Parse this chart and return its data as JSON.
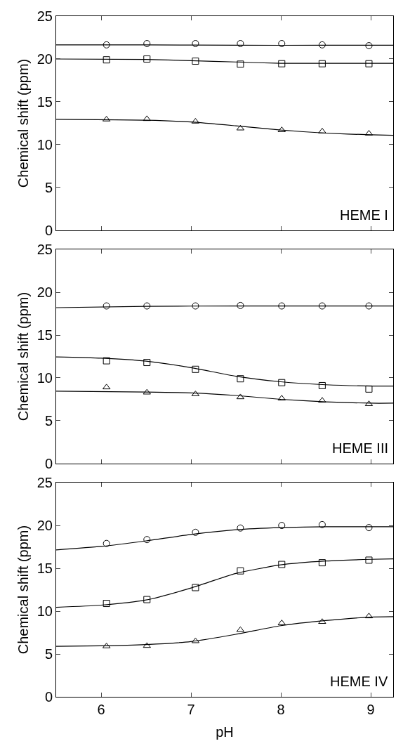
{
  "chart_data": [
    {
      "type": "scatter",
      "ylabel": "Chemical shift (ppm)",
      "xlim": [
        5.5,
        9.25
      ],
      "xticks": [
        6,
        7,
        8,
        9
      ],
      "ylim": [
        0,
        25
      ],
      "yticks": [
        0,
        5,
        10,
        15,
        20,
        25
      ],
      "tick_labels": "y",
      "annotations": [
        "HEME I"
      ],
      "series": [
        {
          "marker": "circle",
          "color": "#000000",
          "x": [
            6.06,
            6.51,
            7.05,
            7.55,
            8.01,
            8.46,
            8.98
          ],
          "values": [
            21.65,
            21.8,
            21.8,
            21.8,
            21.8,
            21.65,
            21.55
          ]
        },
        {
          "marker": "square",
          "color": "#000000",
          "x": [
            6.06,
            6.51,
            7.05,
            7.55,
            8.01,
            8.46,
            8.98
          ],
          "values": [
            19.9,
            20.0,
            19.75,
            19.4,
            19.45,
            19.45,
            19.45
          ]
        },
        {
          "marker": "triangle",
          "color": "#000000",
          "x": [
            6.06,
            6.51,
            7.05,
            7.55,
            8.01,
            8.46,
            8.98
          ],
          "values": [
            12.95,
            13.0,
            12.7,
            11.9,
            11.7,
            11.55,
            11.3
          ]
        },
        {
          "type": "line",
          "marker": "none",
          "color": "#000000",
          "x": [
            5.5,
            6.5,
            7.5,
            8.5,
            9.25
          ],
          "values": [
            21.65,
            21.65,
            21.6,
            21.6,
            21.6
          ]
        },
        {
          "type": "line",
          "marker": "none",
          "color": "#000000",
          "x": [
            5.5,
            6.5,
            7,
            7.5,
            8,
            8.5,
            9.25
          ],
          "values": [
            20.0,
            19.95,
            19.8,
            19.65,
            19.5,
            19.5,
            19.5
          ]
        },
        {
          "type": "line",
          "marker": "none",
          "color": "#000000",
          "x": [
            5.5,
            6.5,
            7,
            7.5,
            8,
            8.5,
            9,
            9.25
          ],
          "values": [
            12.95,
            12.85,
            12.65,
            12.2,
            11.7,
            11.35,
            11.15,
            11.1
          ]
        }
      ]
    },
    {
      "type": "scatter",
      "ylabel": "Chemical shift (ppm)",
      "xlim": [
        5.5,
        9.25
      ],
      "xticks": [
        6,
        7,
        8,
        9
      ],
      "ylim": [
        0,
        25
      ],
      "yticks": [
        0,
        5,
        10,
        15,
        20,
        25
      ],
      "tick_labels": "y",
      "annotations": [
        "HEME III"
      ],
      "series": [
        {
          "marker": "circle",
          "color": "#000000",
          "x": [
            6.06,
            6.51,
            7.05,
            7.55,
            8.01,
            8.46,
            8.98
          ],
          "values": [
            18.4,
            18.4,
            18.4,
            18.45,
            18.4,
            18.4,
            18.4
          ]
        },
        {
          "marker": "square",
          "color": "#000000",
          "x": [
            6.06,
            6.51,
            7.05,
            7.55,
            8.01,
            8.46,
            8.98
          ],
          "values": [
            12.0,
            11.8,
            11.0,
            9.9,
            9.45,
            9.1,
            8.7
          ]
        },
        {
          "marker": "triangle",
          "color": "#000000",
          "x": [
            6.06,
            6.51,
            7.05,
            7.55,
            8.01,
            8.46,
            8.98
          ],
          "values": [
            8.9,
            8.3,
            8.1,
            7.75,
            7.6,
            7.35,
            6.95
          ]
        },
        {
          "type": "line",
          "marker": "none",
          "color": "#000000",
          "x": [
            5.5,
            6.5,
            7.5,
            9.25
          ],
          "values": [
            18.2,
            18.35,
            18.4,
            18.4
          ]
        },
        {
          "type": "line",
          "marker": "none",
          "color": "#000000",
          "x": [
            5.5,
            6,
            6.5,
            7,
            7.5,
            8,
            8.5,
            9,
            9.25
          ],
          "values": [
            12.45,
            12.3,
            11.95,
            11.2,
            10.2,
            9.55,
            9.2,
            9.05,
            9.05
          ]
        },
        {
          "type": "line",
          "marker": "none",
          "color": "#000000",
          "x": [
            5.5,
            6.5,
            7,
            7.5,
            8,
            8.5,
            9,
            9.25
          ],
          "values": [
            8.45,
            8.35,
            8.25,
            7.95,
            7.5,
            7.2,
            7.05,
            7.05
          ]
        }
      ]
    },
    {
      "type": "scatter",
      "xlabel": "pH",
      "ylabel": "Chemical shift (ppm)",
      "xlim": [
        5.5,
        9.25
      ],
      "xticks": [
        6,
        7,
        8,
        9
      ],
      "ylim": [
        0,
        25
      ],
      "yticks": [
        0,
        5,
        10,
        15,
        20,
        25
      ],
      "annotations": [
        "HEME IV"
      ],
      "series": [
        {
          "marker": "circle",
          "color": "#000000",
          "x": [
            6.06,
            6.51,
            7.05,
            7.55,
            8.01,
            8.46,
            8.98
          ],
          "values": [
            17.9,
            18.35,
            19.2,
            19.7,
            20.0,
            20.1,
            19.75
          ]
        },
        {
          "marker": "square",
          "color": "#000000",
          "x": [
            6.06,
            6.51,
            7.05,
            7.55,
            8.01,
            8.46,
            8.98
          ],
          "values": [
            10.9,
            11.35,
            12.75,
            14.7,
            15.45,
            15.65,
            15.95
          ]
        },
        {
          "marker": "triangle",
          "color": "#000000",
          "x": [
            6.06,
            6.51,
            7.05,
            7.55,
            8.01,
            8.46,
            8.98
          ],
          "values": [
            5.9,
            5.95,
            6.5,
            7.8,
            8.6,
            8.75,
            9.4
          ]
        },
        {
          "type": "line",
          "marker": "none",
          "color": "#000000",
          "x": [
            5.5,
            6,
            6.5,
            7,
            7.5,
            8,
            8.5,
            9.25
          ],
          "values": [
            17.15,
            17.55,
            18.2,
            18.95,
            19.5,
            19.75,
            19.85,
            19.85
          ]
        },
        {
          "type": "line",
          "marker": "none",
          "color": "#000000",
          "x": [
            5.5,
            6,
            6.5,
            7,
            7.5,
            8,
            8.5,
            9,
            9.25
          ],
          "values": [
            10.45,
            10.7,
            11.3,
            12.7,
            14.4,
            15.4,
            15.85,
            16.05,
            16.1
          ]
        },
        {
          "type": "line",
          "marker": "none",
          "color": "#000000",
          "x": [
            5.5,
            6,
            6.5,
            7,
            7.5,
            8,
            8.5,
            9,
            9.25
          ],
          "values": [
            5.9,
            5.95,
            6.1,
            6.45,
            7.3,
            8.3,
            8.9,
            9.3,
            9.35
          ]
        }
      ]
    }
  ]
}
